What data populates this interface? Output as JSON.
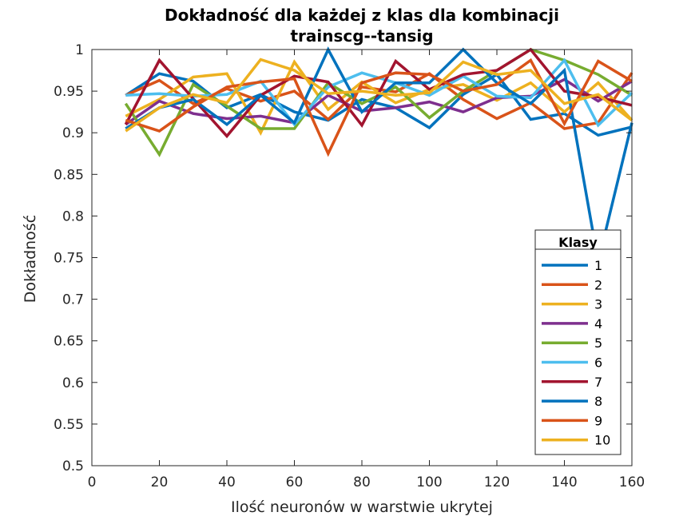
{
  "chart_data": {
    "type": "line",
    "title": [
      "Dokładność dla każdej z klas dla kombinacji",
      "trainscg--tansig"
    ],
    "xlabel": "Ilość neuronów w warstwie ukrytej",
    "ylabel": "Dokładność",
    "xlim": [
      0,
      160
    ],
    "ylim": [
      0.5,
      1
    ],
    "xticks": [
      0,
      20,
      40,
      60,
      80,
      100,
      120,
      140,
      160
    ],
    "yticks": [
      0.5,
      0.55,
      0.6,
      0.65,
      0.7,
      0.75,
      0.8,
      0.85,
      0.9,
      0.95,
      1
    ],
    "xtick_labels": [
      "0",
      "20",
      "40",
      "60",
      "80",
      "100",
      "120",
      "140",
      "160"
    ],
    "ytick_labels": [
      "0.5",
      "0.55",
      "0.6",
      "0.65",
      "0.7",
      "0.75",
      "0.8",
      "0.85",
      "0.9",
      "0.95",
      "1"
    ],
    "grid": false,
    "legend": {
      "title": "Klasy",
      "location": "lower-right"
    },
    "x": [
      10,
      20,
      30,
      40,
      50,
      60,
      70,
      80,
      90,
      100,
      110,
      120,
      130,
      140,
      150,
      160
    ],
    "series": [
      {
        "name": "1",
        "color": "#0072BD",
        "values": [
          0.945,
          0.971,
          0.962,
          0.93,
          0.946,
          0.925,
          0.915,
          0.94,
          0.93,
          0.906,
          0.946,
          0.97,
          0.916,
          0.923,
          0.897,
          0.907
        ]
      },
      {
        "name": "2",
        "color": "#D95319",
        "values": [
          0.945,
          0.963,
          0.935,
          0.953,
          0.938,
          0.95,
          0.916,
          0.955,
          0.949,
          0.971,
          0.94,
          0.917,
          0.936,
          0.905,
          0.912,
          0.972
        ]
      },
      {
        "name": "3",
        "color": "#EDB120",
        "values": [
          0.92,
          0.94,
          0.967,
          0.971,
          0.9,
          0.985,
          0.928,
          0.961,
          0.936,
          0.952,
          0.958,
          0.939,
          0.96,
          0.925,
          0.96,
          0.915
        ]
      },
      {
        "name": "4",
        "color": "#7E2F8E",
        "values": [
          0.91,
          0.938,
          0.923,
          0.917,
          0.92,
          0.912,
          0.945,
          0.926,
          0.93,
          0.937,
          0.925,
          0.942,
          0.944,
          0.964,
          0.938,
          0.962
        ]
      },
      {
        "name": "5",
        "color": "#77AC30",
        "values": [
          0.935,
          0.874,
          0.958,
          0.932,
          0.905,
          0.905,
          0.96,
          0.935,
          0.955,
          0.918,
          0.95,
          0.975,
          1.0,
          0.987,
          0.97,
          0.945
        ]
      },
      {
        "name": "6",
        "color": "#4DBEEE",
        "values": [
          0.945,
          0.947,
          0.944,
          0.946,
          0.962,
          0.91,
          0.955,
          0.972,
          0.96,
          0.945,
          0.968,
          0.944,
          0.942,
          0.987,
          0.909,
          0.948
        ]
      },
      {
        "name": "7",
        "color": "#A2142F",
        "values": [
          0.91,
          0.987,
          0.941,
          0.896,
          0.945,
          0.968,
          0.961,
          0.909,
          0.986,
          0.952,
          0.97,
          0.975,
          1.0,
          0.95,
          0.943,
          0.933
        ]
      },
      {
        "name": "8",
        "color": "#0072BD",
        "values": [
          0.905,
          0.93,
          0.94,
          0.91,
          0.945,
          0.912,
          1.0,
          0.925,
          0.96,
          0.96,
          1.0,
          0.96,
          0.935,
          0.975,
          0.745,
          0.912
        ]
      },
      {
        "name": "9",
        "color": "#D95319",
        "values": [
          0.915,
          0.902,
          0.931,
          0.955,
          0.961,
          0.965,
          0.875,
          0.96,
          0.972,
          0.97,
          0.95,
          0.958,
          0.987,
          0.911,
          0.986,
          0.962
        ]
      },
      {
        "name": "10",
        "color": "#EDB120",
        "values": [
          0.902,
          0.93,
          0.946,
          0.936,
          0.988,
          0.975,
          0.947,
          0.95,
          0.945,
          0.948,
          0.985,
          0.97,
          0.975,
          0.935,
          0.946,
          0.915
        ]
      }
    ]
  }
}
